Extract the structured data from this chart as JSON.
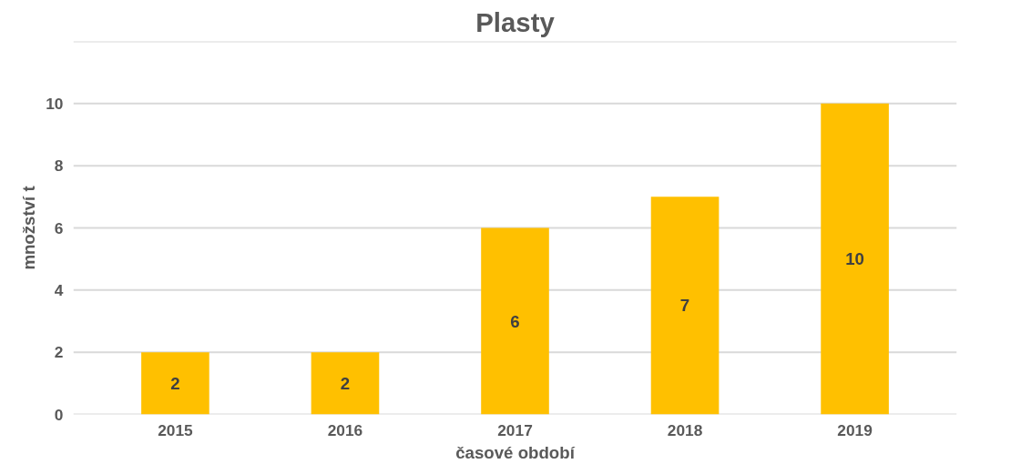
{
  "chart_data": {
    "type": "bar",
    "title": "Plasty",
    "xlabel": "časové období",
    "ylabel": "množství t",
    "categories": [
      "2015",
      "2016",
      "2017",
      "2018",
      "2019"
    ],
    "values": [
      2,
      2,
      6,
      7,
      10
    ],
    "color": "#ffc000",
    "ylim": [
      0,
      12
    ],
    "yticks": [
      0,
      2,
      4,
      6,
      8,
      10,
      {
        "value": 12,
        "label": null
      }
    ],
    "grid": "y",
    "data_labels": true
  }
}
